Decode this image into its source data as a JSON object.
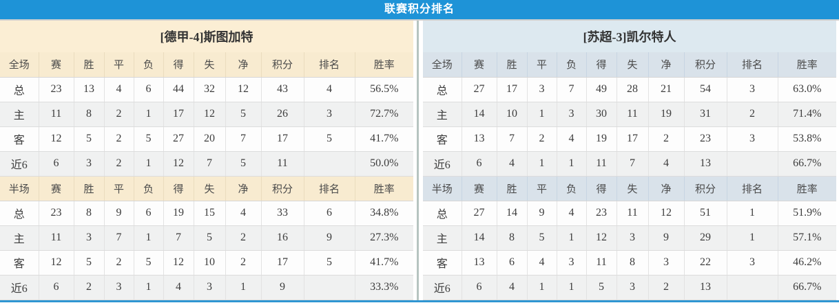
{
  "title_bar": {
    "title": "联赛积分排名"
  },
  "colors": {
    "title_bar_bg": "#1e93d7",
    "bottom_accent_line": "#2e95d2",
    "left_theme_bg": "#fbeed4",
    "left_header_bg": "#f8ebd0",
    "right_theme_bg": "#dde9f0",
    "right_header_bg": "#d9e2ea",
    "points_color": "#e8432a",
    "win_rate_color": "#e8432a",
    "rank_color": "#3e86cb",
    "home_label_color": "#d01212",
    "away_label_color": "#2121cd",
    "divider_color": "#b6c4c0"
  },
  "columns": {
    "stats": [
      "赛",
      "胜",
      "平",
      "负",
      "得",
      "失",
      "净"
    ],
    "points": "积分",
    "rank": "排名",
    "win_rate": "胜率"
  },
  "teams": [
    {
      "name": "[德甲-4]斯图加特",
      "theme": "cream",
      "sections": [
        {
          "scope_label": "全场",
          "rows": [
            {
              "label": "总",
              "kind": "total",
              "stats": [
                23,
                13,
                4,
                6,
                44,
                32,
                12
              ],
              "points": "43",
              "rank": "4",
              "win_rate": "56.5%"
            },
            {
              "label": "主",
              "kind": "home",
              "stats": [
                11,
                8,
                2,
                1,
                17,
                12,
                5
              ],
              "points": "26",
              "rank": "3",
              "win_rate": "72.7%"
            },
            {
              "label": "客",
              "kind": "away",
              "stats": [
                12,
                5,
                2,
                5,
                27,
                20,
                7
              ],
              "points": "17",
              "rank": "5",
              "win_rate": "41.7%"
            },
            {
              "label": "近6",
              "kind": "recent",
              "stats": [
                6,
                3,
                2,
                1,
                12,
                7,
                5
              ],
              "points": "11",
              "rank": "",
              "win_rate": "50.0%"
            }
          ]
        },
        {
          "scope_label": "半场",
          "rows": [
            {
              "label": "总",
              "kind": "total",
              "stats": [
                23,
                8,
                9,
                6,
                19,
                15,
                4
              ],
              "points": "33",
              "rank": "6",
              "win_rate": "34.8%"
            },
            {
              "label": "主",
              "kind": "home",
              "stats": [
                11,
                3,
                7,
                1,
                7,
                5,
                2
              ],
              "points": "16",
              "rank": "9",
              "win_rate": "27.3%"
            },
            {
              "label": "客",
              "kind": "away",
              "stats": [
                12,
                5,
                2,
                5,
                12,
                10,
                2
              ],
              "points": "17",
              "rank": "5",
              "win_rate": "41.7%"
            },
            {
              "label": "近6",
              "kind": "recent",
              "stats": [
                6,
                2,
                3,
                1,
                4,
                3,
                1
              ],
              "points": "9",
              "rank": "",
              "win_rate": "33.3%"
            }
          ]
        }
      ]
    },
    {
      "name": "[苏超-3]凯尔特人",
      "theme": "blue",
      "sections": [
        {
          "scope_label": "全场",
          "rows": [
            {
              "label": "总",
              "kind": "total",
              "stats": [
                27,
                17,
                3,
                7,
                49,
                28,
                21
              ],
              "points": "54",
              "rank": "3",
              "win_rate": "63.0%"
            },
            {
              "label": "主",
              "kind": "home",
              "stats": [
                14,
                10,
                1,
                3,
                30,
                11,
                19
              ],
              "points": "31",
              "rank": "2",
              "win_rate": "71.4%"
            },
            {
              "label": "客",
              "kind": "away",
              "stats": [
                13,
                7,
                2,
                4,
                19,
                17,
                2
              ],
              "points": "23",
              "rank": "3",
              "win_rate": "53.8%"
            },
            {
              "label": "近6",
              "kind": "recent",
              "stats": [
                6,
                4,
                1,
                1,
                11,
                7,
                4
              ],
              "points": "13",
              "rank": "",
              "win_rate": "66.7%"
            }
          ]
        },
        {
          "scope_label": "半场",
          "rows": [
            {
              "label": "总",
              "kind": "total",
              "stats": [
                27,
                14,
                9,
                4,
                23,
                11,
                12
              ],
              "points": "51",
              "rank": "1",
              "win_rate": "51.9%"
            },
            {
              "label": "主",
              "kind": "home",
              "stats": [
                14,
                8,
                5,
                1,
                12,
                3,
                9
              ],
              "points": "29",
              "rank": "1",
              "win_rate": "57.1%"
            },
            {
              "label": "客",
              "kind": "away",
              "stats": [
                13,
                6,
                4,
                3,
                11,
                8,
                3
              ],
              "points": "22",
              "rank": "3",
              "win_rate": "46.2%"
            },
            {
              "label": "近6",
              "kind": "recent",
              "stats": [
                6,
                4,
                1,
                1,
                5,
                3,
                2
              ],
              "points": "13",
              "rank": "",
              "win_rate": "66.7%"
            }
          ]
        }
      ]
    }
  ]
}
